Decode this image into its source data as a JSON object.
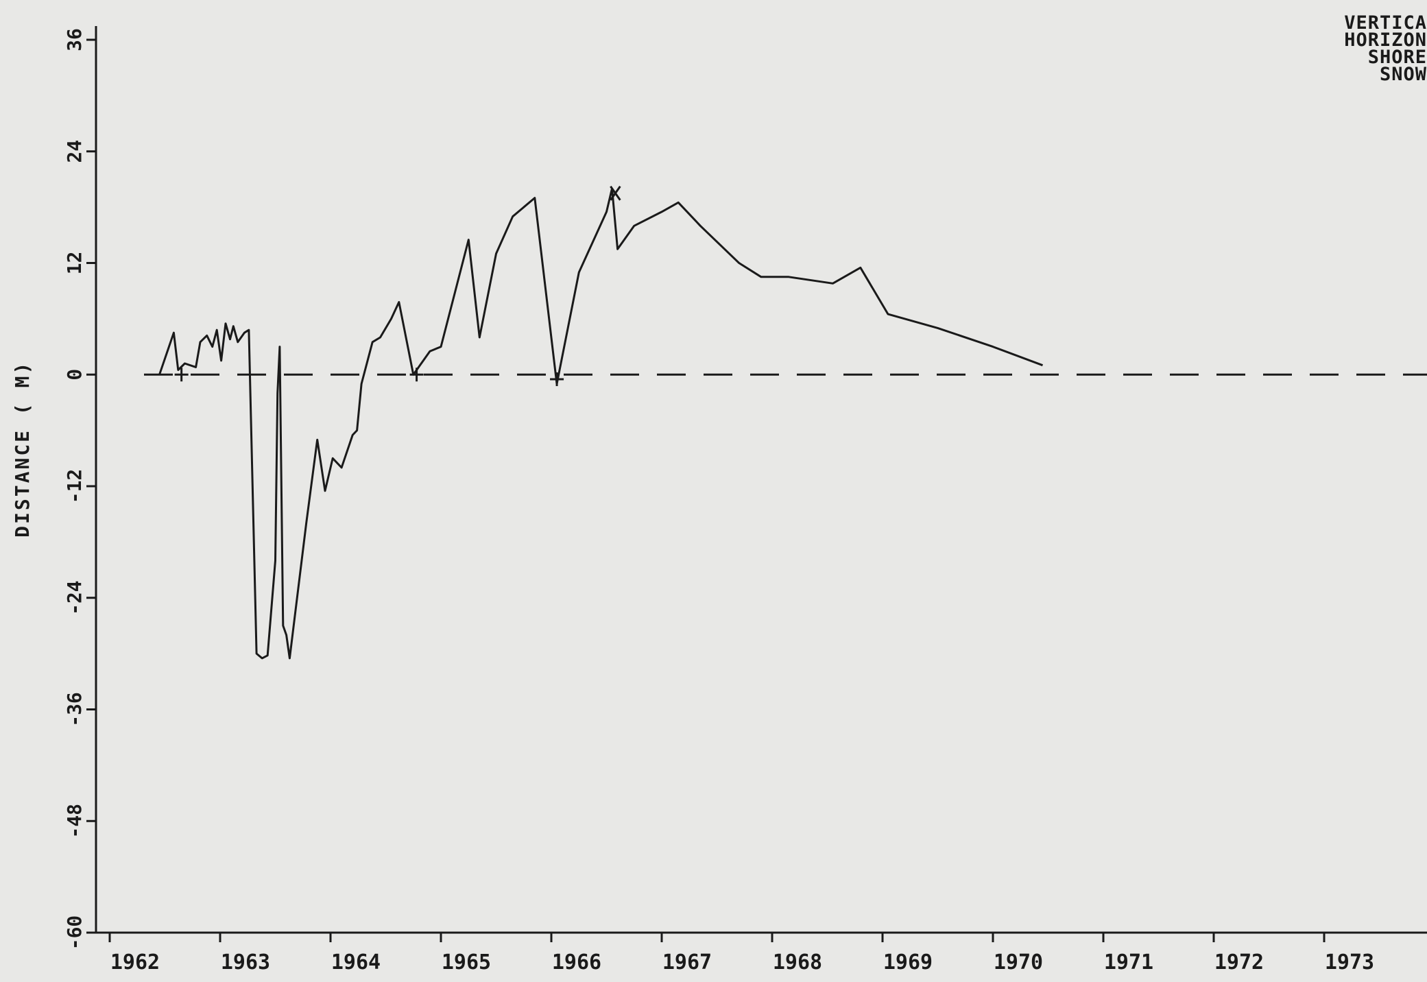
{
  "chart_data": {
    "type": "line",
    "title": "",
    "xlabel": "",
    "ylabel": "DISTANCE ( M)",
    "xlim": [
      1962,
      1973
    ],
    "ylim": [
      -60,
      36
    ],
    "grid": false,
    "x_ticks": [
      "1962",
      "1963",
      "1964",
      "1965",
      "1966",
      "1967",
      "1968",
      "1969",
      "1970",
      "1971",
      "1972",
      "1973"
    ],
    "y_ticks": [
      "36",
      "24",
      "12",
      "0",
      "-12",
      "-24",
      "-36",
      "-48",
      "-60"
    ],
    "legend_partial": [
      "VERTICA",
      "HORIZON",
      "SHORE",
      "SNOW"
    ],
    "reference_line": {
      "y": 0,
      "style": "dashed"
    },
    "series": [
      {
        "values": [
          [
            1962.45,
            0.0
          ],
          [
            1962.58,
            4.5
          ],
          [
            1962.62,
            0.5
          ],
          [
            1962.68,
            1.2
          ],
          [
            1962.78,
            0.8
          ],
          [
            1962.82,
            3.5
          ],
          [
            1962.88,
            4.2
          ],
          [
            1962.93,
            3.0
          ],
          [
            1962.97,
            4.8
          ],
          [
            1963.01,
            1.5
          ],
          [
            1963.05,
            5.5
          ],
          [
            1963.09,
            3.8
          ],
          [
            1963.12,
            5.2
          ],
          [
            1963.16,
            3.5
          ],
          [
            1963.22,
            4.5
          ],
          [
            1963.26,
            4.8
          ],
          [
            1963.33,
            -30.0
          ],
          [
            1963.38,
            -30.5
          ],
          [
            1963.43,
            -30.2
          ],
          [
            1963.5,
            -20.0
          ],
          [
            1963.52,
            -2.0
          ],
          [
            1963.54,
            3.0
          ],
          [
            1963.57,
            -27.0
          ],
          [
            1963.6,
            -28.0
          ],
          [
            1963.63,
            -30.5
          ],
          [
            1963.78,
            -16.0
          ],
          [
            1963.88,
            -7.0
          ],
          [
            1963.95,
            -12.5
          ],
          [
            1964.02,
            -9.0
          ],
          [
            1964.1,
            -10.0
          ],
          [
            1964.2,
            -6.5
          ],
          [
            1964.24,
            -6.0
          ],
          [
            1964.28,
            -1.0
          ],
          [
            1964.38,
            3.5
          ],
          [
            1964.45,
            4.0
          ],
          [
            1964.55,
            6.0
          ],
          [
            1964.62,
            7.8
          ],
          [
            1964.75,
            0.0
          ],
          [
            1964.9,
            2.5
          ],
          [
            1965.0,
            3.0
          ],
          [
            1965.25,
            14.5
          ],
          [
            1965.35,
            4.0
          ],
          [
            1965.5,
            13.0
          ],
          [
            1965.65,
            17.0
          ],
          [
            1965.85,
            19.0
          ],
          [
            1966.05,
            -1.0
          ],
          [
            1966.25,
            11.0
          ],
          [
            1966.5,
            17.5
          ],
          [
            1966.55,
            20.0
          ],
          [
            1966.6,
            13.5
          ],
          [
            1966.75,
            16.0
          ],
          [
            1967.0,
            17.5
          ],
          [
            1967.15,
            18.5
          ],
          [
            1967.35,
            16.0
          ],
          [
            1967.7,
            12.0
          ],
          [
            1967.9,
            10.5
          ],
          [
            1968.15,
            10.5
          ],
          [
            1968.55,
            9.8
          ],
          [
            1968.8,
            11.5
          ],
          [
            1969.05,
            6.5
          ],
          [
            1969.5,
            5.0
          ],
          [
            1970.0,
            3.0
          ],
          [
            1970.45,
            1.0
          ]
        ]
      }
    ],
    "markers": [
      {
        "x": 1962.65,
        "y": 0.0,
        "symbol": "+"
      },
      {
        "x": 1964.78,
        "y": 0.0,
        "symbol": "+"
      },
      {
        "x": 1966.05,
        "y": -0.5,
        "symbol": "+"
      },
      {
        "x": 1966.58,
        "y": 19.5,
        "symbol": "X"
      }
    ]
  }
}
